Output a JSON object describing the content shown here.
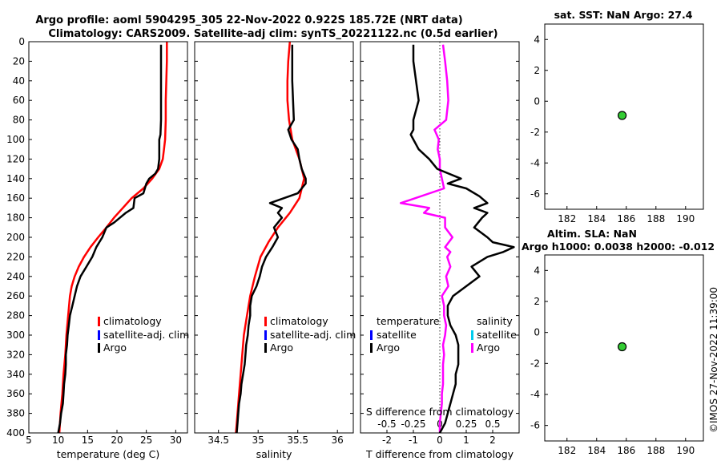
{
  "title_line1": "Argo profile: aoml 5904295_305 22-Nov-2022 0.922S 185.72E (NRT data)",
  "title_line2": "Climatology: CARS2009. Satellite-adj clim: synTS_20221122.nc (0.5d earlier)",
  "footer_stamp": "©IMOS 27-Nov-2022 11:39:00",
  "colors": {
    "climatology": "#ff0000",
    "satellite_adj": "#0000ff",
    "argo": "#000000",
    "argo_salinity_diff": "#ff00ff",
    "satellite_salinity": "#00ccee",
    "dot": "#33cc33"
  },
  "depth_ticks": [
    0,
    20,
    40,
    60,
    80,
    100,
    120,
    140,
    160,
    180,
    200,
    220,
    240,
    260,
    280,
    300,
    320,
    340,
    360,
    380,
    400
  ],
  "chart_data": [
    {
      "type": "line",
      "id": "temperature",
      "xlabel": "temperature (deg C)",
      "ylabel": "depth",
      "xlim": [
        5,
        32
      ],
      "ylim": [
        400,
        0
      ],
      "xticks": [
        5,
        10,
        15,
        20,
        25,
        30
      ],
      "xtick_labels": [
        "5",
        "10",
        "15",
        "20",
        "25",
        "30"
      ],
      "legend": [
        "climatology",
        "satellite-adj. clim",
        "Argo"
      ],
      "series": [
        {
          "name": "climatology",
          "color": "#ff0000",
          "points": [
            [
              28.5,
              0
            ],
            [
              28.5,
              20
            ],
            [
              28.4,
              40
            ],
            [
              28.3,
              60
            ],
            [
              28.3,
              80
            ],
            [
              28.2,
              100
            ],
            [
              28.0,
              110
            ],
            [
              27.8,
              120
            ],
            [
              27.2,
              130
            ],
            [
              26.0,
              140
            ],
            [
              24.5,
              150
            ],
            [
              22.5,
              160
            ],
            [
              21.0,
              170
            ],
            [
              19.5,
              180
            ],
            [
              18.2,
              190
            ],
            [
              16.8,
              200
            ],
            [
              15.5,
              210
            ],
            [
              14.4,
              220
            ],
            [
              13.5,
              230
            ],
            [
              12.8,
              240
            ],
            [
              12.3,
              250
            ],
            [
              12.0,
              260
            ],
            [
              11.7,
              280
            ],
            [
              11.4,
              300
            ],
            [
              11.2,
              320
            ],
            [
              10.9,
              340
            ],
            [
              10.7,
              360
            ],
            [
              10.4,
              380
            ],
            [
              10.2,
              400
            ]
          ]
        },
        {
          "name": "Argo",
          "color": "#000000",
          "points": [
            [
              27.5,
              3
            ],
            [
              27.5,
              20
            ],
            [
              27.5,
              40
            ],
            [
              27.5,
              60
            ],
            [
              27.5,
              80
            ],
            [
              27.4,
              95
            ],
            [
              27.2,
              100
            ],
            [
              27.2,
              120
            ],
            [
              27.0,
              130
            ],
            [
              26.5,
              135
            ],
            [
              25.5,
              140
            ],
            [
              25.0,
              145
            ],
            [
              24.5,
              155
            ],
            [
              23.0,
              160
            ],
            [
              22.8,
              170
            ],
            [
              21.5,
              175
            ],
            [
              20.5,
              180
            ],
            [
              19.5,
              185
            ],
            [
              18.2,
              190
            ],
            [
              17.5,
              200
            ],
            [
              16.5,
              210
            ],
            [
              15.8,
              220
            ],
            [
              14.8,
              230
            ],
            [
              13.8,
              240
            ],
            [
              13.2,
              250
            ],
            [
              12.8,
              260
            ],
            [
              12.4,
              270
            ],
            [
              12.0,
              280
            ],
            [
              11.8,
              290
            ],
            [
              11.6,
              300
            ],
            [
              11.5,
              310
            ],
            [
              11.3,
              320
            ],
            [
              11.3,
              330
            ],
            [
              11.2,
              340
            ],
            [
              11.0,
              350
            ],
            [
              10.9,
              360
            ],
            [
              10.8,
              370
            ],
            [
              10.5,
              380
            ],
            [
              10.3,
              390
            ],
            [
              10.0,
              400
            ]
          ]
        }
      ]
    },
    {
      "type": "line",
      "id": "salinity",
      "xlabel": "salinity",
      "ylabel": "depth",
      "xlim": [
        34.2,
        36.2
      ],
      "ylim": [
        400,
        0
      ],
      "xticks": [
        34.5,
        35,
        35.5,
        36
      ],
      "xtick_labels": [
        "34.5",
        "35",
        "35.5",
        "36"
      ],
      "legend": [
        "climatology",
        "satellite-adj. clim",
        "Argo"
      ],
      "series": [
        {
          "name": "climatology",
          "color": "#ff0000",
          "points": [
            [
              35.4,
              0
            ],
            [
              35.38,
              20
            ],
            [
              35.37,
              40
            ],
            [
              35.37,
              60
            ],
            [
              35.39,
              80
            ],
            [
              35.43,
              100
            ],
            [
              35.52,
              120
            ],
            [
              35.58,
              140
            ],
            [
              35.52,
              160
            ],
            [
              35.4,
              175
            ],
            [
              35.25,
              190
            ],
            [
              35.13,
              205
            ],
            [
              35.03,
              220
            ],
            [
              34.96,
              240
            ],
            [
              34.9,
              260
            ],
            [
              34.86,
              280
            ],
            [
              34.82,
              300
            ],
            [
              34.8,
              320
            ],
            [
              34.78,
              340
            ],
            [
              34.76,
              360
            ],
            [
              34.74,
              380
            ],
            [
              34.72,
              400
            ]
          ]
        },
        {
          "name": "Argo",
          "color": "#000000",
          "points": [
            [
              35.43,
              3
            ],
            [
              35.43,
              20
            ],
            [
              35.43,
              40
            ],
            [
              35.44,
              60
            ],
            [
              35.45,
              80
            ],
            [
              35.38,
              90
            ],
            [
              35.42,
              100
            ],
            [
              35.5,
              110
            ],
            [
              35.52,
              120
            ],
            [
              35.55,
              130
            ],
            [
              35.6,
              140
            ],
            [
              35.6,
              145
            ],
            [
              35.55,
              150
            ],
            [
              35.5,
              155
            ],
            [
              35.15,
              165
            ],
            [
              35.3,
              170
            ],
            [
              35.25,
              175
            ],
            [
              35.3,
              180
            ],
            [
              35.2,
              190
            ],
            [
              35.25,
              200
            ],
            [
              35.18,
              210
            ],
            [
              35.1,
              220
            ],
            [
              35.05,
              230
            ],
            [
              35.02,
              240
            ],
            [
              34.98,
              250
            ],
            [
              34.92,
              260
            ],
            [
              34.9,
              270
            ],
            [
              34.9,
              280
            ],
            [
              34.88,
              290
            ],
            [
              34.87,
              300
            ],
            [
              34.85,
              310
            ],
            [
              34.84,
              320
            ],
            [
              34.83,
              330
            ],
            [
              34.81,
              340
            ],
            [
              34.79,
              350
            ],
            [
              34.78,
              360
            ],
            [
              34.76,
              370
            ],
            [
              34.75,
              380
            ],
            [
              34.74,
              390
            ],
            [
              34.73,
              400
            ]
          ]
        }
      ]
    },
    {
      "type": "line",
      "id": "differences",
      "xlabel": "T difference from climatology",
      "xlabel_top": "S difference from climatology",
      "ylabel": "depth",
      "xlim": [
        -3,
        3
      ],
      "xlim_salinity": [
        -0.75,
        0.75
      ],
      "ylim": [
        400,
        0
      ],
      "xticks": [
        -2,
        -1,
        0,
        1,
        2
      ],
      "xtick_labels": [
        "-2",
        "-1",
        "0",
        "1",
        "2"
      ],
      "xticks_salinity": [
        -0.5,
        -0.25,
        0,
        0.25,
        0.5
      ],
      "xtick_labels_salinity": [
        "-0.5",
        "-0.25",
        "0",
        "0.25",
        "0.5"
      ],
      "legend_temperature_title": "temperature",
      "legend_salinity_title": "salinity",
      "legend_items": [
        "satellite",
        "Argo"
      ],
      "series": [
        {
          "name": "T Argo - clim",
          "color": "#000000",
          "points": [
            [
              -1.0,
              3
            ],
            [
              -1.0,
              20
            ],
            [
              -0.9,
              40
            ],
            [
              -0.8,
              60
            ],
            [
              -0.9,
              70
            ],
            [
              -1.0,
              80
            ],
            [
              -1.0,
              90
            ],
            [
              -1.1,
              95
            ],
            [
              -1.0,
              100
            ],
            [
              -0.8,
              110
            ],
            [
              -0.4,
              120
            ],
            [
              -0.1,
              130
            ],
            [
              0.8,
              140
            ],
            [
              0.3,
              145
            ],
            [
              1.0,
              150
            ],
            [
              1.5,
              158
            ],
            [
              1.8,
              165
            ],
            [
              1.3,
              170
            ],
            [
              1.8,
              175
            ],
            [
              1.6,
              180
            ],
            [
              1.3,
              190
            ],
            [
              1.8,
              200
            ],
            [
              2.0,
              205
            ],
            [
              2.8,
              210
            ],
            [
              2.4,
              215
            ],
            [
              1.8,
              220
            ],
            [
              1.2,
              230
            ],
            [
              1.5,
              240
            ],
            [
              1.0,
              250
            ],
            [
              0.5,
              260
            ],
            [
              0.3,
              270
            ],
            [
              0.3,
              280
            ],
            [
              0.4,
              290
            ],
            [
              0.6,
              300
            ],
            [
              0.7,
              310
            ],
            [
              0.7,
              320
            ],
            [
              0.7,
              330
            ],
            [
              0.6,
              340
            ],
            [
              0.6,
              350
            ],
            [
              0.5,
              360
            ],
            [
              0.4,
              370
            ],
            [
              0.3,
              380
            ],
            [
              0.2,
              390
            ],
            [
              0.0,
              400
            ]
          ]
        },
        {
          "name": "S Argo - clim",
          "color": "#ff00ff",
          "axis": "salinity",
          "points": [
            [
              0.03,
              3
            ],
            [
              0.05,
              20
            ],
            [
              0.07,
              40
            ],
            [
              0.08,
              60
            ],
            [
              0.06,
              80
            ],
            [
              -0.05,
              90
            ],
            [
              -0.01,
              100
            ],
            [
              -0.02,
              110
            ],
            [
              0.0,
              120
            ],
            [
              0.0,
              130
            ],
            [
              0.02,
              140
            ],
            [
              0.04,
              150
            ],
            [
              -0.37,
              165
            ],
            [
              -0.1,
              170
            ],
            [
              -0.15,
              175
            ],
            [
              0.05,
              180
            ],
            [
              0.05,
              190
            ],
            [
              0.12,
              200
            ],
            [
              0.05,
              210
            ],
            [
              0.1,
              215
            ],
            [
              0.07,
              220
            ],
            [
              0.1,
              230
            ],
            [
              0.06,
              240
            ],
            [
              0.08,
              250
            ],
            [
              0.02,
              260
            ],
            [
              0.04,
              270
            ],
            [
              0.04,
              280
            ],
            [
              0.06,
              290
            ],
            [
              0.05,
              300
            ],
            [
              0.03,
              310
            ],
            [
              0.04,
              320
            ],
            [
              0.03,
              330
            ],
            [
              0.03,
              340
            ],
            [
              0.03,
              350
            ],
            [
              0.02,
              360
            ],
            [
              0.02,
              370
            ],
            [
              0.01,
              380
            ],
            [
              0.0,
              390
            ],
            [
              0.0,
              400
            ]
          ]
        }
      ]
    },
    {
      "type": "scatter",
      "id": "sst_map",
      "title": "sat. SST: NaN Argo: 27.4",
      "xlim": [
        180.5,
        191.2
      ],
      "ylim": [
        -7,
        5
      ],
      "xticks": [
        182,
        184,
        186,
        188,
        190
      ],
      "xtick_labels": [
        "182",
        "184",
        "186",
        "188",
        "190"
      ],
      "yticks": [
        4,
        2,
        0,
        -2,
        -4,
        -6
      ],
      "ytick_labels": [
        "4",
        "2",
        "0",
        "-2",
        "-4",
        "-6"
      ],
      "points": [
        [
          185.72,
          -0.922
        ]
      ]
    },
    {
      "type": "scatter",
      "id": "sla_map",
      "title_line1": "Altim. SLA: NaN",
      "title_line2": "Argo h1000: 0.0038 h2000: -0.012",
      "xlim": [
        180.5,
        191.2
      ],
      "ylim": [
        -7,
        5
      ],
      "xticks": [
        182,
        184,
        186,
        188,
        190
      ],
      "xtick_labels": [
        "182",
        "184",
        "186",
        "188",
        "190"
      ],
      "yticks": [
        4,
        2,
        0,
        -2,
        -4,
        -6
      ],
      "ytick_labels": [
        "4",
        "2",
        "0",
        "-2",
        "-4",
        "-6"
      ],
      "points": [
        [
          185.72,
          -0.922
        ]
      ]
    }
  ]
}
